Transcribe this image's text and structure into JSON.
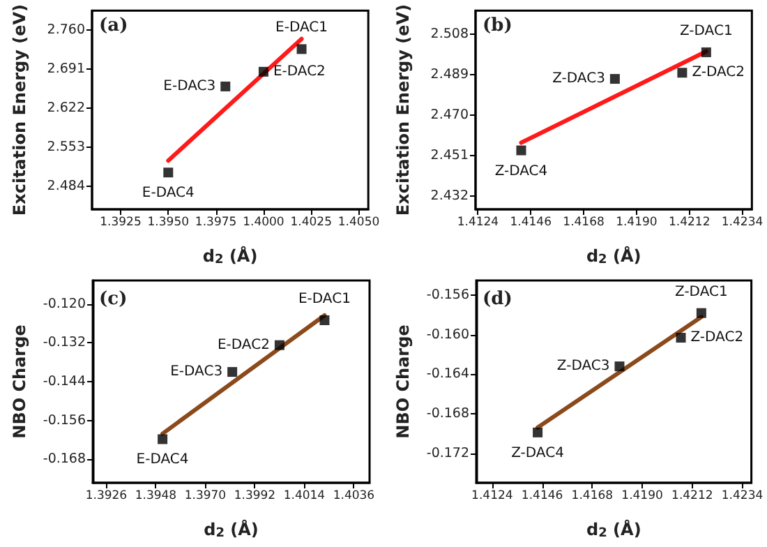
{
  "chart_data": [
    {
      "type": "scatter",
      "title": "(a)",
      "xlabel": "d$_{2}$ (Å)",
      "ylabel": "Excitation Energy (eV)",
      "xlim": [
        1.391,
        1.4055
      ],
      "ylim": [
        2.443,
        2.794
      ],
      "xticks": [
        {
          "value": 1.3925,
          "label": "1.3925"
        },
        {
          "value": 1.395,
          "label": "1.3950"
        },
        {
          "value": 1.3975,
          "label": "1.3975"
        },
        {
          "value": 1.4,
          "label": "1.4000"
        },
        {
          "value": 1.4025,
          "label": "1.4025"
        },
        {
          "value": 1.405,
          "label": "1.4050"
        }
      ],
      "yticks": [
        {
          "value": 2.484,
          "label": "2.484"
        },
        {
          "value": 2.553,
          "label": "2.553"
        },
        {
          "value": 2.622,
          "label": "2.622"
        },
        {
          "value": 2.691,
          "label": "2.691"
        },
        {
          "value": 2.76,
          "label": "2.760"
        }
      ],
      "series": [
        {
          "color": "#000000",
          "marker": "square",
          "x": [
            1.402,
            1.4,
            1.398,
            1.395
          ],
          "values": [
            2.726,
            2.686,
            2.66,
            2.508
          ]
        },
        {
          "type": "line",
          "color": "#ff1a1a",
          "marker": "none",
          "x": [
            1.395,
            1.402
          ],
          "values": [
            2.529,
            2.744
          ]
        }
      ],
      "annotations": [
        {
          "text": "E-DAC1",
          "x": 1.402,
          "y": 2.726
        },
        {
          "text": "E-DAC2",
          "x": 1.4,
          "y": 2.686
        },
        {
          "text": "E-DAC3",
          "x": 1.398,
          "y": 2.66
        },
        {
          "text": "E-DAC4",
          "x": 1.395,
          "y": 2.508
        }
      ]
    },
    {
      "type": "scatter",
      "title": "(b)",
      "xlabel": "d$_{2}$ (Å)",
      "ylabel": "Excitation Energy (eV)",
      "xlim": [
        1.4123,
        1.4238
      ],
      "ylim": [
        2.4258,
        2.5192
      ],
      "xticks": [
        {
          "value": 1.4124,
          "label": "1.4124"
        },
        {
          "value": 1.4146,
          "label": "1.4146"
        },
        {
          "value": 1.4168,
          "label": "1.4168"
        },
        {
          "value": 1.419,
          "label": "1.4190"
        },
        {
          "value": 1.4212,
          "label": "1.4212"
        },
        {
          "value": 1.4234,
          "label": "1.4234"
        }
      ],
      "yticks": [
        {
          "value": 2.432,
          "label": "2.432"
        },
        {
          "value": 2.451,
          "label": "2.451"
        },
        {
          "value": 2.47,
          "label": "2.470"
        },
        {
          "value": 2.489,
          "label": "2.489"
        },
        {
          "value": 2.508,
          "label": "2.508"
        }
      ],
      "series": [
        {
          "color": "#000000",
          "marker": "square",
          "x": [
            1.4219,
            1.4209,
            1.4181,
            1.4142
          ],
          "values": [
            2.4996,
            2.49,
            2.4871,
            2.4535
          ]
        },
        {
          "type": "line",
          "color": "#ff1a1a",
          "marker": "none",
          "x": [
            1.4142,
            1.4219
          ],
          "values": [
            2.4571,
            2.5
          ]
        }
      ],
      "annotations": [
        {
          "text": "Z-DAC1",
          "x": 1.4219,
          "y": 2.4996
        },
        {
          "text": "Z-DAC2",
          "x": 1.4209,
          "y": 2.49
        },
        {
          "text": "Z-DAC3",
          "x": 1.4181,
          "y": 2.4871
        },
        {
          "text": "Z-DAC4",
          "x": 1.4142,
          "y": 2.4535
        }
      ]
    },
    {
      "type": "scatter",
      "title": "(c)",
      "xlabel": "d$_{2}$ (Å)",
      "ylabel": "NBO Charge",
      "xlim": [
        1.392,
        1.4043
      ],
      "ylim": [
        -0.1753,
        -0.1127
      ],
      "xticks": [
        {
          "value": 1.3926,
          "label": "1.3926"
        },
        {
          "value": 1.3948,
          "label": "1.3948"
        },
        {
          "value": 1.397,
          "label": "1.3970"
        },
        {
          "value": 1.3992,
          "label": "1.3992"
        },
        {
          "value": 1.4014,
          "label": "1.4014"
        },
        {
          "value": 1.4036,
          "label": "1.4036"
        }
      ],
      "yticks": [
        {
          "value": -0.168,
          "label": "-0.168"
        },
        {
          "value": -0.156,
          "label": "-0.156"
        },
        {
          "value": -0.144,
          "label": "-0.144"
        },
        {
          "value": -0.132,
          "label": "-0.132"
        },
        {
          "value": -0.12,
          "label": "-0.120"
        }
      ],
      "series": [
        {
          "color": "#000000",
          "marker": "square",
          "x": [
            1.4023,
            1.4003,
            1.3982,
            1.3951
          ],
          "values": [
            -0.125,
            -0.1327,
            -0.141,
            -0.1618
          ]
        },
        {
          "type": "line",
          "color": "#8b4a1c",
          "marker": "none",
          "x": [
            1.3951,
            1.4023
          ],
          "values": [
            -0.1601,
            -0.1235
          ]
        }
      ],
      "annotations": [
        {
          "text": "E-DAC1",
          "x": 1.4023,
          "y": -0.125
        },
        {
          "text": "E-DAC2",
          "x": 1.4003,
          "y": -0.1327
        },
        {
          "text": "E-DAC3",
          "x": 1.3982,
          "y": -0.141
        },
        {
          "text": "E-DAC4",
          "x": 1.3951,
          "y": -0.1618
        }
      ]
    },
    {
      "type": "scatter",
      "title": "(d)",
      "xlabel": "d$_{2}$ (Å)",
      "ylabel": "NBO Charge",
      "xlim": [
        1.4117,
        1.4238
      ],
      "ylim": [
        -0.175,
        -0.1545
      ],
      "xticks": [
        {
          "value": 1.4124,
          "label": "1.4124"
        },
        {
          "value": 1.4146,
          "label": "1.4146"
        },
        {
          "value": 1.4168,
          "label": "1.4168"
        },
        {
          "value": 1.419,
          "label": "1.4190"
        },
        {
          "value": 1.4212,
          "label": "1.4212"
        },
        {
          "value": 1.4234,
          "label": "1.4234"
        }
      ],
      "yticks": [
        {
          "value": -0.172,
          "label": "-0.172"
        },
        {
          "value": -0.168,
          "label": "-0.168"
        },
        {
          "value": -0.164,
          "label": "-0.164"
        },
        {
          "value": -0.16,
          "label": "-0.160"
        },
        {
          "value": -0.156,
          "label": "-0.156"
        }
      ],
      "series": [
        {
          "color": "#000000",
          "marker": "square",
          "x": [
            1.4216,
            1.4207,
            1.418,
            1.4144
          ],
          "values": [
            -0.1578,
            -0.1603,
            -0.1632,
            -0.1699
          ]
        },
        {
          "type": "line",
          "color": "#8b4a1c",
          "marker": "none",
          "x": [
            1.4144,
            1.4216
          ],
          "values": [
            -0.1694,
            -0.1582
          ]
        }
      ],
      "annotations": [
        {
          "text": "Z-DAC1",
          "x": 1.4216,
          "y": -0.1578
        },
        {
          "text": "Z-DAC2",
          "x": 1.4207,
          "y": -0.1603
        },
        {
          "text": "Z-DAC3",
          "x": 1.418,
          "y": -0.1632
        },
        {
          "text": "Z-DAC4",
          "x": 1.4144,
          "y": -0.1699
        }
      ]
    }
  ]
}
